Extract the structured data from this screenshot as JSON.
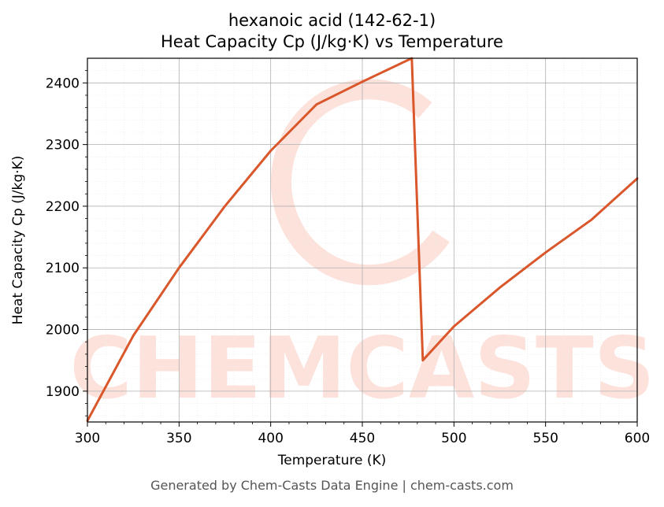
{
  "chart_data": {
    "type": "line",
    "title": "hexanoic acid (142-62-1)",
    "subtitle": "Heat Capacity Cp (J/kg·K) vs Temperature",
    "xlabel": "Temperature (K)",
    "ylabel": "Heat Capacity Cp (J/kg·K)",
    "xlim": [
      300,
      600
    ],
    "ylim": [
      1850,
      2440
    ],
    "xticks": [
      300,
      350,
      400,
      450,
      500,
      550,
      600
    ],
    "yticks": [
      1900,
      2000,
      2100,
      2200,
      2300,
      2400
    ],
    "grid": true,
    "legend": "none",
    "series": [
      {
        "color": "#d9572b",
        "x": [
          300,
          325,
          350,
          375,
          400,
          425,
          450,
          477,
          483,
          500,
          525,
          550,
          575,
          600
        ],
        "y": [
          1852,
          1990,
          2100,
          2200,
          2290,
          2365,
          2402,
          2440,
          1950,
          2005,
          2068,
          2125,
          2178,
          2245
        ]
      }
    ]
  },
  "watermark": "CHEMCASTS",
  "footer": "Generated by Chem-Casts Data Engine | chem-casts.com"
}
